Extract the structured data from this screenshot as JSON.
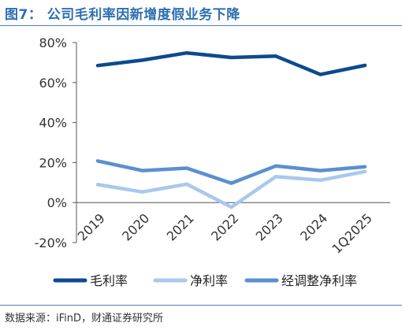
{
  "header": {
    "title": "图7：  公司毛利率因新增度假业务下降"
  },
  "footer": {
    "source": "数据来源：iFinD，财通证券研究所"
  },
  "chart_data": {
    "type": "line",
    "categories": [
      "2019",
      "2020",
      "2021",
      "2022",
      "2023",
      "2024",
      "1Q2025"
    ],
    "series": [
      {
        "name": "毛利率",
        "color": "#0c4a8f",
        "values": [
          68.5,
          71.2,
          74.8,
          72.5,
          73.2,
          64.0,
          68.6
        ]
      },
      {
        "name": "净利率",
        "color": "#a9c8ec",
        "values": [
          9.0,
          5.3,
          9.2,
          -2.3,
          13.0,
          11.2,
          15.5
        ]
      },
      {
        "name": "经调整净利率",
        "color": "#5b8fd0",
        "values": [
          20.8,
          16.0,
          17.2,
          9.7,
          18.3,
          16.0,
          17.9
        ]
      }
    ],
    "ylim": [
      -20,
      80
    ],
    "yticks": [
      -20,
      0,
      20,
      40,
      60,
      80
    ],
    "ytick_labels": [
      "-20%",
      "0%",
      "20%",
      "40%",
      "60%",
      "80%"
    ],
    "grid": false,
    "legend_position": "bottom",
    "title": "",
    "xlabel": "",
    "ylabel": ""
  }
}
